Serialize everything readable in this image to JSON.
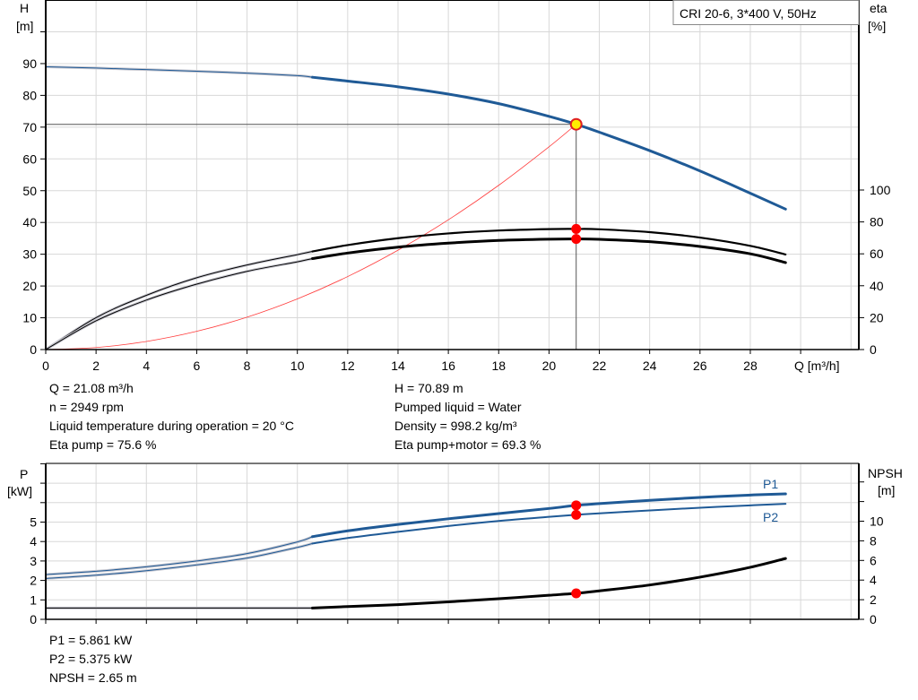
{
  "chart_data": [
    {
      "type": "line",
      "title": "CRI 20-6, 3*400 V, 50Hz",
      "xlabel": "Q [m³/h]",
      "ylabel": "H [m]",
      "ylabel_line1": "H",
      "ylabel_line2": "[m]",
      "y2label_line1": "eta",
      "y2label_line2": "[%]",
      "xlim": [
        0,
        32.3
      ],
      "ylim": [
        0,
        100
      ],
      "y2lim": [
        0,
        200
      ],
      "x_ticks": [
        "0",
        "2",
        "4",
        "6",
        "8",
        "10",
        "12",
        "14",
        "16",
        "18",
        "20",
        "22",
        "24",
        "26",
        "28"
      ],
      "y_ticks": [
        "0",
        "10",
        "20",
        "30",
        "40",
        "50",
        "60",
        "70",
        "80",
        "90"
      ],
      "y2_ticks": [
        "0",
        "20",
        "40",
        "60",
        "80",
        "100"
      ],
      "grid": true,
      "series": [
        {
          "key": "H",
          "axis": "left",
          "color": "#1f5a96",
          "x": [
            0,
            2,
            4,
            6,
            8,
            10,
            10.6,
            12,
            14,
            16,
            18,
            20,
            21.08,
            22,
            24,
            26,
            28,
            29.4
          ],
          "y": [
            89,
            88.6,
            88.1,
            87.6,
            87,
            86.2,
            85.7,
            84.5,
            82.7,
            80.4,
            77.4,
            73.4,
            70.89,
            68.4,
            62.6,
            56.2,
            49.2,
            44.2
          ]
        },
        {
          "key": "eta_pump",
          "axis": "right",
          "color": "#000000",
          "x": [
            0,
            2,
            4,
            6,
            8,
            10,
            10.6,
            12,
            14,
            16,
            18,
            20,
            21.08,
            22,
            24,
            26,
            28,
            29.4
          ],
          "y": [
            0,
            20,
            34,
            45,
            53,
            59.5,
            61.5,
            65.5,
            69.8,
            72.8,
            74.6,
            75.5,
            75.6,
            75.4,
            73.6,
            70.2,
            65,
            59.6
          ]
        },
        {
          "key": "eta_pump_motor",
          "axis": "right",
          "color": "#000000",
          "x": [
            0,
            2,
            4,
            6,
            8,
            10,
            10.6,
            12,
            14,
            16,
            18,
            20,
            21.08,
            22,
            24,
            26,
            28,
            29.4
          ],
          "y": [
            0,
            18,
            31,
            41,
            49,
            55,
            57,
            60.5,
            64.2,
            66.7,
            68.4,
            69.2,
            69.3,
            69.1,
            67.6,
            64.6,
            60,
            54.5
          ]
        },
        {
          "key": "system",
          "axis": "left",
          "color": "#ff3b3b",
          "x": [
            0,
            2,
            4,
            6,
            8,
            10,
            12,
            14,
            16,
            18,
            20,
            21.08
          ],
          "y": [
            0,
            0.64,
            2.55,
            5.74,
            10.2,
            15.95,
            22.97,
            31.27,
            40.84,
            51.69,
            63.81,
            70.89
          ]
        }
      ],
      "duty_point": {
        "Q": 21.08,
        "H": 70.89,
        "eta_pump": 75.6,
        "eta_pump_motor": 69.3
      }
    },
    {
      "type": "line",
      "ylabel_line1": "P",
      "ylabel_line2": "[kW]",
      "y2label_line1": "NPSH",
      "y2label_line2": "[m]",
      "xlim": [
        0,
        32.3
      ],
      "ylim": [
        0,
        8
      ],
      "y2lim": [
        0,
        16
      ],
      "y_ticks": [
        "0",
        "1",
        "2",
        "3",
        "4",
        "5"
      ],
      "y2_ticks": [
        "0",
        "2",
        "4",
        "6",
        "8",
        "10"
      ],
      "grid": true,
      "series": [
        {
          "key": "P1",
          "name": "P1",
          "axis": "left",
          "color": "#1f5a96",
          "x": [
            0,
            2,
            4,
            6,
            8,
            10,
            10.6,
            12,
            14,
            16,
            18,
            20,
            21.08,
            22,
            24,
            26,
            28,
            29.4
          ],
          "y": [
            2.3,
            2.47,
            2.7,
            3.0,
            3.38,
            3.98,
            4.25,
            4.55,
            4.88,
            5.17,
            5.44,
            5.7,
            5.861,
            5.95,
            6.12,
            6.27,
            6.39,
            6.45
          ]
        },
        {
          "key": "P2",
          "name": "P2",
          "axis": "left",
          "color": "#1f5a96",
          "x": [
            0,
            2,
            4,
            6,
            8,
            10,
            10.6,
            12,
            14,
            16,
            18,
            20,
            21.08,
            22,
            24,
            26,
            28,
            29.4
          ],
          "y": [
            2.1,
            2.27,
            2.5,
            2.8,
            3.15,
            3.7,
            3.9,
            4.18,
            4.5,
            4.8,
            5.06,
            5.27,
            5.375,
            5.45,
            5.6,
            5.74,
            5.86,
            5.94
          ]
        },
        {
          "key": "NPSH",
          "axis": "right",
          "color": "#000000",
          "x": [
            0,
            2,
            4,
            6,
            8,
            10,
            10.6,
            12,
            14,
            16,
            18,
            20,
            21.08,
            22,
            24,
            26,
            28,
            29.4
          ],
          "y": [
            1.15,
            1.15,
            1.15,
            1.15,
            1.15,
            1.15,
            1.15,
            1.3,
            1.5,
            1.78,
            2.1,
            2.45,
            2.65,
            2.9,
            3.5,
            4.3,
            5.3,
            6.2
          ]
        }
      ],
      "duty_point": {
        "Q": 21.08,
        "P1": 5.861,
        "P2": 5.375,
        "NPSH": 2.65
      }
    }
  ],
  "info_top": {
    "left": [
      "Q = 21.08 m³/h",
      "n = 2949 rpm",
      "Liquid temperature during operation = 20 °C",
      "Eta pump = 75.6 %"
    ],
    "right": [
      "H = 70.89 m",
      "Pumped liquid = Water",
      "Density = 998.2 kg/m³",
      "Eta pump+motor = 69.3 %"
    ]
  },
  "info_bottom": [
    "P1 = 5.861 kW",
    "P2 = 5.375 kW",
    "NPSH = 2.65 m"
  ]
}
